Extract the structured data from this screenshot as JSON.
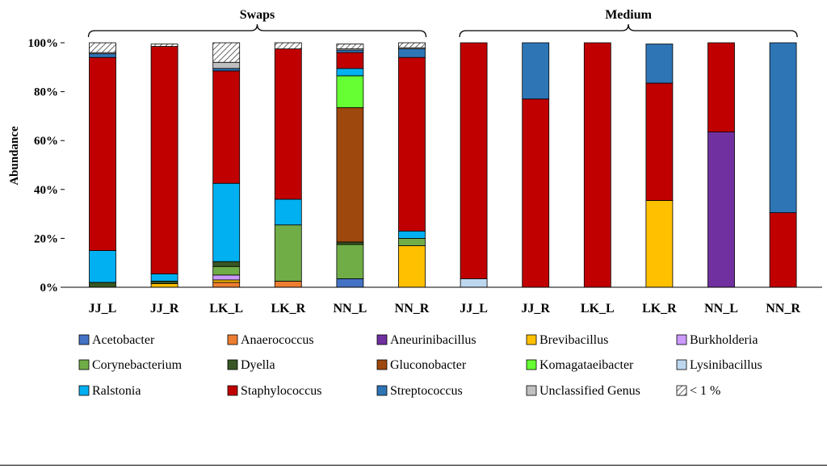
{
  "chart_data": {
    "type": "stacked-bar",
    "ylabel": "Abundance",
    "ylim": [
      0,
      100
    ],
    "yticks": [
      "0%",
      "20%",
      "40%",
      "60%",
      "80%",
      "100%"
    ],
    "groups": [
      {
        "label": "Swaps",
        "start": 0,
        "end": 5
      },
      {
        "label": "Medium",
        "start": 6,
        "end": 11
      }
    ],
    "categories": [
      "JJ_L",
      "JJ_R",
      "LK_L",
      "LK_R",
      "NN_L",
      "NN_R",
      "JJ_L",
      "JJ_R",
      "LK_L",
      "LK_R",
      "NN_L",
      "NN_R"
    ],
    "series": [
      {
        "name": "Acetobacter",
        "color": "#4472C4",
        "values": [
          0,
          0,
          0,
          0,
          3.5,
          0,
          0,
          0,
          0,
          0,
          0,
          0
        ]
      },
      {
        "name": "Anaerococcus",
        "color": "#ED7D31",
        "values": [
          0,
          0,
          2,
          2.5,
          0,
          0,
          0,
          0,
          0,
          0,
          0,
          0
        ]
      },
      {
        "name": "Aneurinibacillus",
        "color": "#7030A0",
        "values": [
          0,
          0,
          0,
          0,
          0,
          0,
          0,
          0,
          0,
          0,
          63.5,
          0
        ]
      },
      {
        "name": "Brevibacillus",
        "color": "#FFC000",
        "values": [
          0,
          1.5,
          1,
          0,
          0,
          17,
          0,
          0,
          0,
          35.5,
          0,
          0
        ]
      },
      {
        "name": "Burkholderia",
        "color": "#CC99FF",
        "values": [
          0,
          0,
          2,
          0,
          0,
          0,
          0,
          0,
          0,
          0,
          0,
          0
        ]
      },
      {
        "name": "Corynebacterium",
        "color": "#70AD47",
        "values": [
          0,
          0,
          3.5,
          23,
          14,
          3,
          0,
          0,
          0,
          0,
          0,
          0
        ]
      },
      {
        "name": "Dyella",
        "color": "#375623",
        "values": [
          2,
          1,
          2,
          0,
          1,
          0,
          0,
          0,
          0,
          0,
          0,
          0
        ]
      },
      {
        "name": "Gluconobacter",
        "color": "#9E480E",
        "values": [
          0,
          0,
          0,
          0,
          55,
          0,
          0,
          0,
          0,
          0,
          0,
          0
        ]
      },
      {
        "name": "Komagataeibacter",
        "color": "#66FF33",
        "values": [
          0,
          0,
          0,
          0,
          13,
          0,
          0,
          0,
          0,
          0,
          0,
          0
        ]
      },
      {
        "name": "Lysinibacillus",
        "color": "#BDD7EE",
        "values": [
          0,
          0,
          0,
          0,
          0,
          0,
          3.5,
          0,
          0,
          0,
          0,
          0
        ]
      },
      {
        "name": "Ralstonia",
        "color": "#00B0F0",
        "values": [
          13,
          3,
          32,
          10.5,
          3,
          3,
          0,
          0,
          0,
          0,
          0,
          0
        ]
      },
      {
        "name": "Staphylococcus",
        "color": "#C00000",
        "values": [
          79,
          93,
          46,
          61.5,
          6.5,
          71,
          96.5,
          77,
          100,
          48,
          36.5,
          30.5
        ]
      },
      {
        "name": "Streptococcus",
        "color": "#2E75B6",
        "values": [
          1.5,
          0,
          1,
          0,
          1,
          3.5,
          0,
          23,
          0,
          16,
          0,
          69.5
        ]
      },
      {
        "name": "Unclassified Genus",
        "color": "#BFBFBF",
        "values": [
          0.5,
          0,
          2.5,
          0,
          0.5,
          0.5,
          0,
          0,
          0,
          0,
          0,
          0
        ]
      },
      {
        "name": "< 1 %",
        "color": "hatch",
        "values": [
          4,
          1,
          8,
          2.5,
          2,
          2,
          0,
          0,
          0,
          0,
          0,
          0
        ]
      }
    ]
  }
}
